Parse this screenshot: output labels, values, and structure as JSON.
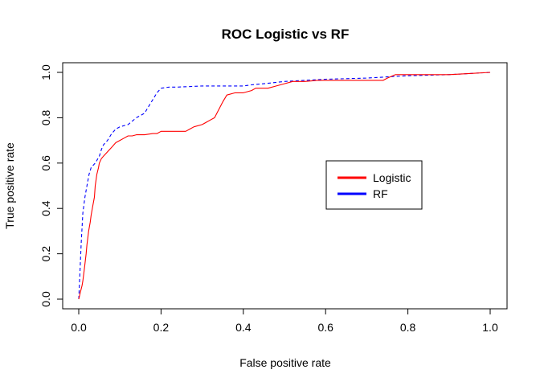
{
  "chart_data": {
    "type": "line",
    "title": "ROC Logistic vs RF",
    "xlabel": "False positive rate",
    "ylabel": "True positive rate",
    "xlim": [
      0,
      1
    ],
    "ylim": [
      0,
      1
    ],
    "x_ticks": [
      "0.0",
      "0.2",
      "0.4",
      "0.6",
      "0.8",
      "1.0"
    ],
    "y_ticks": [
      "0.0",
      "0.2",
      "0.4",
      "0.6",
      "0.8",
      "1.0"
    ],
    "grid": false,
    "legend_position": "center-right",
    "series": [
      {
        "name": "Logistic",
        "color": "#ff0000",
        "style": "solid",
        "x": [
          0.0,
          0.004,
          0.008,
          0.01,
          0.014,
          0.018,
          0.02,
          0.024,
          0.028,
          0.03,
          0.034,
          0.038,
          0.04,
          0.044,
          0.048,
          0.05,
          0.055,
          0.06,
          0.065,
          0.07,
          0.08,
          0.09,
          0.1,
          0.11,
          0.12,
          0.13,
          0.14,
          0.16,
          0.18,
          0.19,
          0.2,
          0.22,
          0.24,
          0.26,
          0.27,
          0.28,
          0.3,
          0.32,
          0.33,
          0.35,
          0.36,
          0.38,
          0.4,
          0.42,
          0.43,
          0.46,
          0.48,
          0.5,
          0.52,
          0.55,
          0.58,
          0.6,
          0.65,
          0.7,
          0.74,
          0.75,
          0.77,
          0.8,
          0.85,
          0.9,
          0.95,
          1.0
        ],
        "y": [
          0.0,
          0.03,
          0.06,
          0.08,
          0.14,
          0.2,
          0.24,
          0.3,
          0.34,
          0.37,
          0.41,
          0.45,
          0.5,
          0.55,
          0.58,
          0.6,
          0.62,
          0.63,
          0.64,
          0.65,
          0.67,
          0.69,
          0.7,
          0.71,
          0.72,
          0.72,
          0.725,
          0.725,
          0.73,
          0.73,
          0.74,
          0.74,
          0.74,
          0.74,
          0.75,
          0.76,
          0.77,
          0.79,
          0.8,
          0.87,
          0.9,
          0.91,
          0.91,
          0.92,
          0.93,
          0.93,
          0.94,
          0.95,
          0.96,
          0.96,
          0.965,
          0.965,
          0.965,
          0.965,
          0.965,
          0.975,
          0.99,
          0.99,
          0.99,
          0.99,
          0.995,
          1.0
        ]
      },
      {
        "name": "RF",
        "color": "#0000ff",
        "style": "dashed",
        "x": [
          0.0,
          0.003,
          0.006,
          0.01,
          0.015,
          0.02,
          0.025,
          0.03,
          0.04,
          0.05,
          0.055,
          0.06,
          0.07,
          0.08,
          0.09,
          0.1,
          0.12,
          0.14,
          0.16,
          0.17,
          0.18,
          0.19,
          0.2,
          0.22,
          0.24,
          0.3,
          0.4,
          0.42,
          0.45,
          0.5,
          0.55,
          0.6,
          0.7,
          0.75,
          0.8,
          0.9,
          0.95,
          1.0
        ],
        "y": [
          0.0,
          0.12,
          0.25,
          0.38,
          0.45,
          0.5,
          0.55,
          0.58,
          0.6,
          0.63,
          0.66,
          0.68,
          0.7,
          0.73,
          0.75,
          0.76,
          0.77,
          0.8,
          0.82,
          0.85,
          0.88,
          0.91,
          0.93,
          0.935,
          0.935,
          0.94,
          0.94,
          0.945,
          0.95,
          0.96,
          0.965,
          0.97,
          0.975,
          0.98,
          0.985,
          0.99,
          0.995,
          1.0
        ]
      }
    ]
  }
}
